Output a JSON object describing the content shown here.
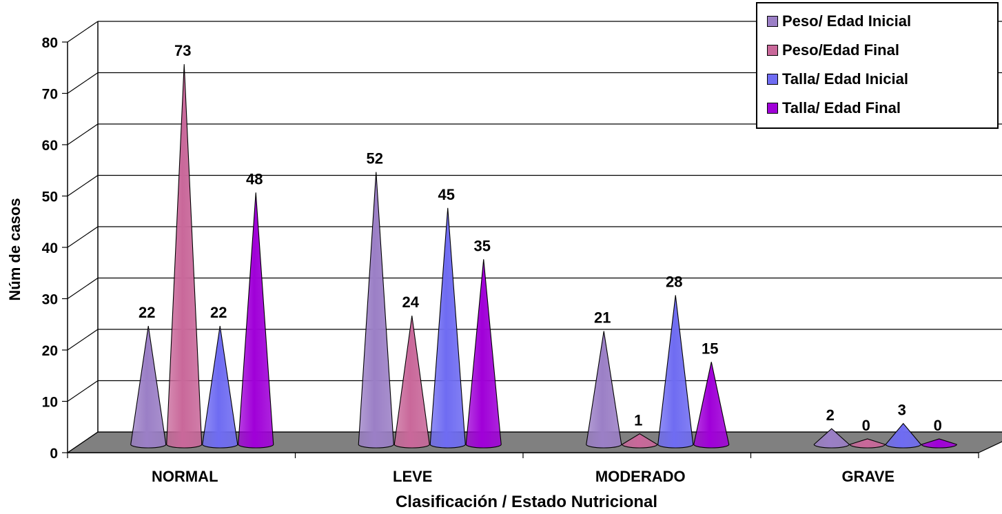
{
  "chart_data": {
    "type": "bar",
    "bar_shape": "cone",
    "three_d": true,
    "xlabel": "Clasificación / Estado Nutricional",
    "ylabel": "Núm de casos",
    "ylim": [
      0,
      80
    ],
    "yticks": [
      "0",
      "10",
      "20",
      "30",
      "40",
      "50",
      "60",
      "70",
      "80"
    ],
    "grid": true,
    "legend_position": "top-right",
    "categories": [
      "NORMAL",
      "LEVE",
      "MODERADO",
      "GRAVE"
    ],
    "series": [
      {
        "name": "Peso/ Edad Inicial",
        "values": [
          22,
          52,
          21,
          2
        ],
        "labels": [
          "22",
          "52",
          "21",
          "2"
        ],
        "color": "#9b7fc6"
      },
      {
        "name": "Peso/Edad Final",
        "values": [
          73,
          24,
          1,
          0
        ],
        "labels": [
          "73",
          "24",
          "1",
          "0"
        ],
        "color": "#c9689a"
      },
      {
        "name": "Talla/ Edad Inicial",
        "values": [
          22,
          45,
          28,
          3
        ],
        "labels": [
          "22",
          "45",
          "28",
          "3"
        ],
        "color": "#6f6cf2"
      },
      {
        "name": "Talla/ Edad Final",
        "values": [
          48,
          35,
          15,
          0
        ],
        "labels": [
          "48",
          "35",
          "15",
          "0"
        ],
        "color": "#a000d8"
      }
    ],
    "floor_color": "#808080"
  }
}
